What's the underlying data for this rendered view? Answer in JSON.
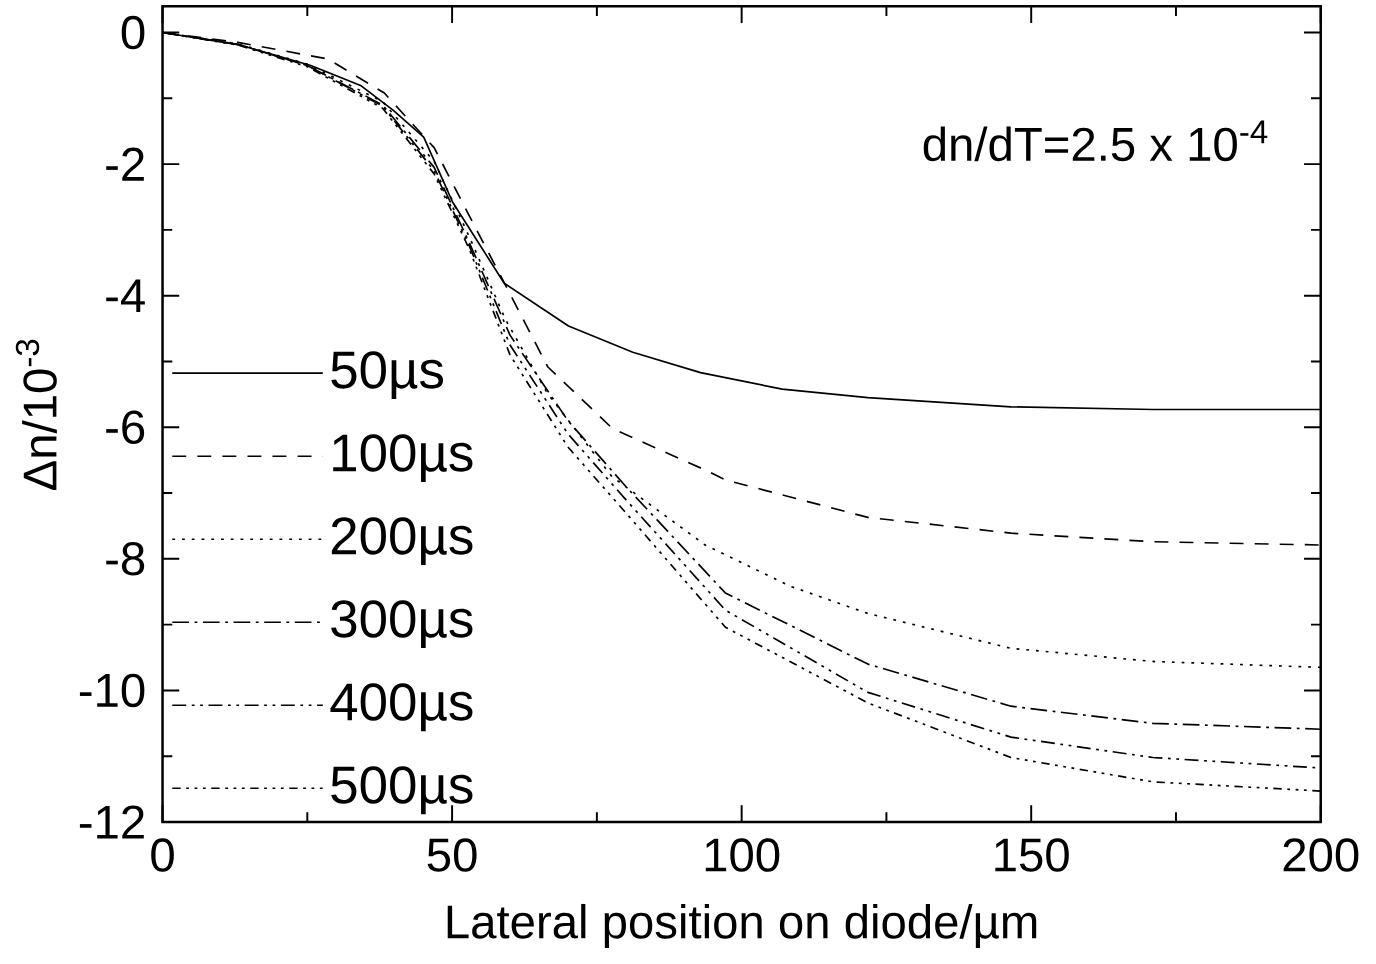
{
  "chart_data": {
    "type": "line",
    "xlabel": "Lateral position on diode/µm",
    "ylabel": "Δn/10$^{-3}$",
    "annotations": [
      "dn/dT=2.5 x 10$^{-4}$"
    ],
    "xlim": [
      0,
      200
    ],
    "ylim": [
      -12,
      0.4
    ],
    "xticks": [
      0,
      50,
      100,
      150,
      200
    ],
    "yticks": [
      0,
      -2,
      -4,
      -6,
      -8,
      -10,
      -12
    ],
    "legend": "bottom left",
    "grid": false,
    "marker": "none",
    "series": [
      {
        "name": "50µs",
        "color": "#000000",
        "line_style": "solid",
        "x": [
          0,
          13.3,
          25.6,
          34.3,
          39.8,
          45.1,
          50.1,
          59,
          70.1,
          81.2,
          92.9,
          107,
          121.8,
          146.5,
          171,
          200
        ],
        "values": [
          0,
          -0.19,
          -0.5,
          -0.81,
          -1.18,
          -1.59,
          -2.58,
          -3.81,
          -4.46,
          -4.86,
          -5.17,
          -5.42,
          -5.55,
          -5.69,
          -5.73,
          -5.73
        ]
      },
      {
        "name": "100µs",
        "color": "#000000",
        "line_style": "dashed",
        "x": [
          0,
          13,
          28.5,
          38.3,
          46.9,
          53,
          60.4,
          66.5,
          77.7,
          93.7,
          97.2,
          121.8,
          146.5,
          171,
          200
        ],
        "values": [
          0,
          -0.15,
          -0.4,
          -0.92,
          -1.75,
          -2.79,
          -4.04,
          -5.08,
          -6.02,
          -6.65,
          -6.8,
          -7.37,
          -7.61,
          -7.74,
          -7.79
        ]
      },
      {
        "name": "200µs",
        "color": "#000000",
        "line_style": "dotted",
        "x": [
          0,
          13,
          25,
          38,
          46.9,
          53,
          59.2,
          66.5,
          77.6,
          93.7,
          108.5,
          121.8,
          146.5,
          171,
          200
        ],
        "values": [
          0,
          -0.17,
          -0.48,
          -1.05,
          -1.96,
          -3.11,
          -4.36,
          -5.49,
          -6.75,
          -7.79,
          -8.42,
          -8.83,
          -9.36,
          -9.56,
          -9.65
        ]
      },
      {
        "name": "300µs",
        "color": "#000000",
        "line_style": "dashdot",
        "x": [
          0,
          13,
          25,
          38,
          46.9,
          53,
          60,
          70,
          80,
          97.2,
          121.8,
          146.5,
          171,
          200
        ],
        "values": [
          0,
          -0.18,
          -0.5,
          -1.1,
          -2.05,
          -3.2,
          -4.6,
          -5.9,
          -6.9,
          -8.52,
          -9.6,
          -10.24,
          -10.5,
          -10.59
        ]
      },
      {
        "name": "400µs",
        "color": "#000000",
        "line_style": "dashdotdot",
        "x": [
          0,
          13,
          25,
          38,
          46.9,
          53,
          60,
          70,
          80,
          97.2,
          121.8,
          146.5,
          171,
          200
        ],
        "values": [
          0,
          -0.18,
          -0.5,
          -1.12,
          -2.1,
          -3.25,
          -4.75,
          -6.1,
          -7.1,
          -8.78,
          -10.03,
          -10.71,
          -11.02,
          -11.18
        ]
      },
      {
        "name": "500µs",
        "color": "#000000",
        "line_style": "dashdotdotdot",
        "x": [
          0,
          13,
          25,
          38,
          46.9,
          53,
          60,
          70,
          80,
          97.2,
          121.8,
          146.5,
          171,
          200
        ],
        "values": [
          0,
          -0.19,
          -0.52,
          -1.15,
          -2.15,
          -3.3,
          -4.9,
          -6.3,
          -7.3,
          -9.04,
          -10.19,
          -11.02,
          -11.39,
          -11.53
        ]
      }
    ]
  }
}
